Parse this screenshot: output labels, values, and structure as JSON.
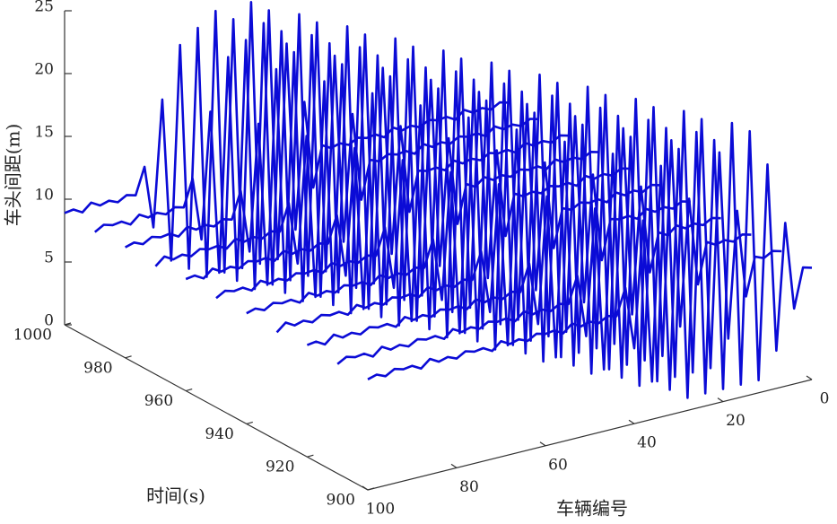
{
  "chart_data": {
    "type": "waterfall3d",
    "xlabel": "车辆编号",
    "ylabel": "时间(s)",
    "zlabel": "车头间距(m)",
    "xlim": [
      0,
      100
    ],
    "xticks": [
      0,
      20,
      40,
      60,
      80,
      100
    ],
    "ylim": [
      900,
      1000
    ],
    "yticks": [
      900,
      920,
      940,
      960,
      980,
      1000
    ],
    "zlim": [
      0,
      25
    ],
    "zticks": [
      0,
      5,
      10,
      15,
      20,
      25
    ],
    "color": "#0b0bd6",
    "x": [
      0,
      2,
      4,
      6,
      8,
      10,
      12,
      14,
      16,
      18,
      20,
      22,
      24,
      26,
      28,
      30,
      32,
      34,
      36,
      38,
      40,
      42,
      44,
      46,
      48,
      50,
      52,
      54,
      56,
      58,
      60,
      62,
      64,
      66,
      68,
      70,
      72,
      74,
      76,
      78,
      80,
      82,
      84,
      86,
      88,
      90,
      92,
      94,
      96,
      98,
      100
    ],
    "times": [
      900,
      910,
      920,
      930,
      940,
      950,
      960,
      970,
      980,
      990,
      1000
    ],
    "series": [
      {
        "values": [
          8.9,
          9.1,
          6,
          13,
          3,
          18,
          1,
          21,
          1,
          22,
          1,
          21,
          1,
          22,
          1,
          21,
          2,
          20,
          3,
          16,
          6,
          11,
          8.9,
          9.1,
          8.7,
          9.0,
          8.8,
          9.2,
          8.6,
          9.0,
          8.9,
          9.1,
          8.7,
          9.0,
          8.8,
          9.2,
          8.6,
          9.0,
          8.9,
          9.1,
          8.7,
          9.0,
          8.8,
          9.2,
          8.6,
          9.0,
          8.9,
          9.1,
          8.7,
          9.0,
          8.8
        ]
      },
      {
        "values": [
          8.9,
          9.1,
          8.7,
          9.0,
          6,
          13,
          3,
          18,
          1,
          21,
          1,
          22,
          1,
          21,
          1,
          22,
          1,
          21,
          2,
          20,
          3,
          16,
          6,
          11,
          8.9,
          9.1,
          8.7,
          9.0,
          8.8,
          9.2,
          8.6,
          9.0,
          8.9,
          9.1,
          8.7,
          9.0,
          8.8,
          9.2,
          8.6,
          9.0,
          8.9,
          9.1,
          8.7,
          9.0,
          8.8,
          9.2,
          8.6,
          9.0,
          8.9,
          9.1,
          8.7
        ]
      },
      {
        "values": [
          8.9,
          9.1,
          8.7,
          9.0,
          8.8,
          9.2,
          6,
          13,
          3,
          18,
          1,
          21,
          1,
          22,
          1,
          21,
          1,
          22,
          1,
          21,
          2,
          20,
          3,
          16,
          6,
          11,
          8.9,
          9.1,
          8.7,
          9.0,
          8.8,
          9.2,
          8.6,
          9.0,
          8.9,
          9.1,
          8.7,
          9.0,
          8.8,
          9.2,
          8.6,
          9.0,
          8.9,
          9.1,
          8.7,
          9.0,
          8.8,
          9.2,
          8.6,
          9.0,
          8.9
        ]
      },
      {
        "values": [
          8.9,
          9.1,
          8.7,
          9.0,
          8.8,
          9.2,
          8.6,
          9.0,
          6,
          13,
          3,
          18,
          1,
          21,
          1,
          22,
          1,
          21,
          1,
          22,
          1,
          21,
          2,
          20,
          3,
          16,
          6,
          11,
          8.9,
          9.1,
          8.7,
          9.0,
          8.8,
          9.2,
          8.6,
          9.0,
          8.9,
          9.1,
          8.7,
          9.0,
          8.8,
          9.2,
          8.6,
          9.0,
          8.9,
          9.1,
          8.7,
          9.0,
          8.8,
          9.2,
          8.6
        ]
      },
      {
        "values": [
          8.9,
          9.1,
          8.7,
          9.0,
          8.8,
          9.2,
          8.6,
          9.0,
          8.9,
          9.1,
          6,
          13,
          3,
          18,
          1,
          21,
          1,
          22,
          1,
          21,
          1,
          22,
          1,
          21,
          2,
          20,
          3,
          16,
          6,
          11,
          8.9,
          9.1,
          8.7,
          9.0,
          8.8,
          9.2,
          8.6,
          9.0,
          8.9,
          9.1,
          8.7,
          9.0,
          8.8,
          9.2,
          8.6,
          9.0,
          8.9,
          9.1,
          8.7,
          9.0,
          8.8
        ]
      },
      {
        "values": [
          8.9,
          9.1,
          8.7,
          9.0,
          8.8,
          9.2,
          8.6,
          9.0,
          8.9,
          9.1,
          8.7,
          9.0,
          6,
          13,
          3,
          18,
          1,
          21,
          1,
          22,
          1,
          21,
          1,
          22,
          1,
          21,
          2,
          20,
          3,
          16,
          6,
          11,
          8.9,
          9.1,
          8.7,
          9.0,
          8.8,
          9.2,
          8.6,
          9.0,
          8.9,
          9.1,
          8.7,
          9.0,
          8.8,
          9.2,
          8.6,
          9.0,
          8.9,
          9.1,
          8.7
        ]
      },
      {
        "values": [
          8.9,
          9.1,
          8.7,
          9.0,
          8.8,
          9.2,
          8.6,
          9.0,
          8.9,
          9.1,
          8.7,
          9.0,
          8.8,
          9.2,
          6,
          13,
          3,
          18,
          1,
          21,
          1,
          22,
          1,
          21,
          1,
          22,
          1,
          21,
          2,
          20,
          3,
          16,
          6,
          11,
          8.9,
          9.1,
          8.7,
          9.0,
          8.8,
          9.2,
          8.6,
          9.0,
          8.9,
          9.1,
          8.7,
          9.0,
          8.8,
          9.2,
          8.6,
          9.0,
          8.9
        ]
      },
      {
        "values": [
          8.9,
          9.1,
          8.7,
          9.0,
          8.8,
          9.2,
          8.6,
          9.0,
          8.9,
          9.1,
          8.7,
          9.0,
          8.8,
          9.2,
          8.6,
          9.0,
          6,
          13,
          3,
          18,
          1,
          21,
          1,
          22,
          1,
          21,
          1,
          22,
          1,
          21,
          2,
          20,
          3,
          16,
          6,
          11,
          8.9,
          9.1,
          8.7,
          9.0,
          8.8,
          9.2,
          8.6,
          9.0,
          8.9,
          9.1,
          8.7,
          9.0,
          8.8,
          9.2,
          8.6
        ]
      },
      {
        "values": [
          8.9,
          9.1,
          8.7,
          9.0,
          8.8,
          9.2,
          8.6,
          9.0,
          8.9,
          9.1,
          8.7,
          9.0,
          8.8,
          9.2,
          8.6,
          9.0,
          8.9,
          9.1,
          6,
          13,
          3,
          18,
          1,
          21,
          1,
          22,
          1,
          21,
          1,
          22,
          1,
          21,
          2,
          20,
          3,
          16,
          6,
          11,
          8.9,
          9.1,
          8.7,
          9.0,
          8.8,
          9.2,
          8.6,
          9.0,
          8.9,
          9.1,
          8.7,
          9.0,
          8.8
        ]
      },
      {
        "values": [
          8.9,
          9.1,
          8.7,
          9.0,
          8.8,
          9.2,
          8.6,
          9.0,
          8.9,
          9.1,
          8.7,
          9.0,
          8.8,
          9.2,
          8.6,
          9.0,
          8.9,
          9.1,
          8.7,
          9.0,
          6,
          13,
          3,
          18,
          1,
          21,
          1,
          22,
          1,
          21,
          1,
          22,
          1,
          21,
          2,
          20,
          3,
          16,
          6,
          11,
          8.9,
          9.1,
          8.7,
          9.0,
          8.8,
          9.2,
          8.6,
          9.0,
          8.9,
          9.1,
          8.7
        ]
      },
      {
        "values": [
          8.9,
          9.1,
          8.7,
          9.0,
          8.8,
          9.2,
          8.6,
          9.0,
          8.9,
          9.1,
          8.7,
          9.0,
          8.8,
          9.2,
          8.6,
          9.0,
          8.9,
          9.1,
          8.7,
          9.0,
          8.8,
          9.2,
          6,
          13,
          3,
          18,
          1,
          21,
          1,
          22,
          1,
          21,
          1,
          22,
          1,
          21,
          2,
          20,
          3,
          16,
          6,
          11,
          8.9,
          9.1,
          8.7,
          9.0,
          8.8,
          9.2,
          8.6,
          9.0,
          8.9
        ]
      }
    ]
  }
}
